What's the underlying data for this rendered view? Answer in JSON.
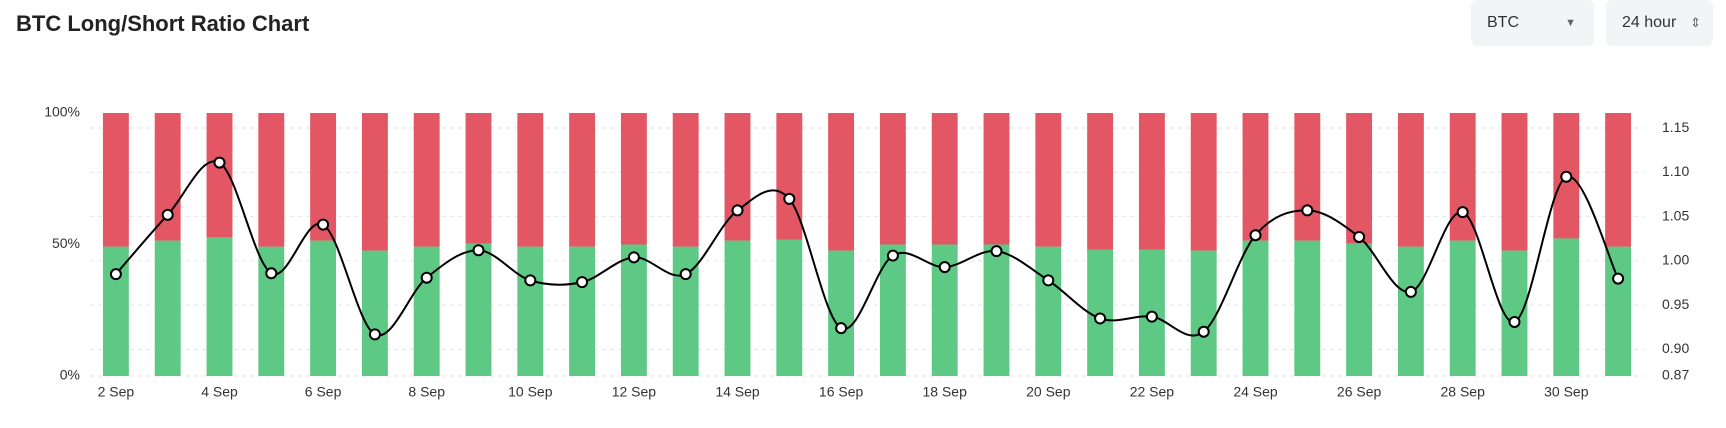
{
  "header": {
    "title": "BTC Long/Short Ratio Chart",
    "symbol": "BTC",
    "interval": "24 hour"
  },
  "chart_data": {
    "type": "stacked-bar-line",
    "categories": [
      "2 Sep",
      null,
      "4 Sep",
      null,
      "6 Sep",
      null,
      "8 Sep",
      null,
      "10 Sep",
      null,
      "12 Sep",
      null,
      "14 Sep",
      null,
      "16 Sep",
      null,
      "18 Sep",
      null,
      "20 Sep",
      null,
      "22 Sep",
      null,
      "24 Sep",
      null,
      "26 Sep",
      null,
      "28 Sep",
      null,
      "30 Sep",
      null
    ],
    "series": [
      {
        "color": "#5ec985",
        "values": [
          49.2,
          51.5,
          52.7,
          49.2,
          51.5,
          47.7,
          49.2,
          50.4,
          49.2,
          49.2,
          50,
          49.2,
          51.5,
          51.9,
          47.7,
          50,
          50,
          50,
          49.2,
          48.1,
          48.1,
          47.7,
          51.5,
          51.5,
          50.4,
          49.2,
          51.5,
          47.7,
          52.3,
          49.2
        ]
      },
      {
        "color": "#e35664",
        "values": [
          50.8,
          48.5,
          47.3,
          50.8,
          48.5,
          52.3,
          50.8,
          49.6,
          50.8,
          50.8,
          50,
          50.8,
          48.5,
          48.1,
          52.3,
          50,
          50,
          50,
          50.8,
          51.9,
          51.9,
          52.3,
          48.5,
          48.5,
          49.6,
          50.8,
          48.5,
          52.3,
          47.7,
          50.8
        ]
      },
      {
        "color": "#000000",
        "axis": "y2",
        "values": [
          0.985,
          1.052,
          1.111,
          0.986,
          1.041,
          0.917,
          0.981,
          1.012,
          0.978,
          0.976,
          1.004,
          0.985,
          1.057,
          1.07,
          0.924,
          1.006,
          0.993,
          1.011,
          0.978,
          0.935,
          0.937,
          0.92,
          1.029,
          1.057,
          1.027,
          0.965,
          1.055,
          0.931,
          1.095,
          0.98
        ]
      }
    ],
    "ylim": [
      0,
      100
    ],
    "yticks": [
      {
        "value": 0,
        "label": "0%"
      },
      {
        "value": 50,
        "label": "50%"
      },
      {
        "value": 100,
        "label": "100%"
      }
    ],
    "y2lim": [
      0.87,
      1.167
    ],
    "y2ticks": [
      0.87,
      {
        "value": 0.9,
        "label": "0.90"
      },
      0.95,
      {
        "value": 1.0,
        "label": "1.00"
      },
      1.05,
      {
        "value": 1.1,
        "label": "1.10"
      },
      1.15
    ],
    "grid": true
  }
}
